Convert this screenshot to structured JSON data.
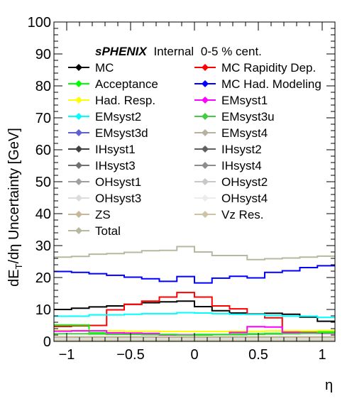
{
  "chart_data": {
    "type": "line",
    "style": "step-histogram",
    "xlabel": "η",
    "ylabel": "dE_T/dη Uncertainty  [GeV]",
    "xlim": [
      -1.1,
      1.1
    ],
    "ylim": [
      0,
      100
    ],
    "x_ticks": [
      "−1",
      "−0.5",
      "0",
      "0.5",
      "1"
    ],
    "x_tick_values": [
      -1,
      -0.5,
      0,
      0.5,
      1
    ],
    "y_ticks": [
      "0",
      "10",
      "20",
      "30",
      "40",
      "50",
      "60",
      "70",
      "80",
      "90",
      "100"
    ],
    "y_tick_values": [
      0,
      10,
      20,
      30,
      40,
      50,
      60,
      70,
      80,
      90,
      100
    ],
    "legend_header": {
      "experiment": "sPHENIX",
      "status": "Internal",
      "centrality": "0-5 % cent."
    },
    "legend_placement": "top",
    "bin_edges": [
      -1.1,
      -0.9625,
      -0.825,
      -0.6875,
      -0.55,
      -0.4125,
      -0.275,
      -0.1375,
      0,
      0.1375,
      0.275,
      0.4125,
      0.55,
      0.6875,
      0.825,
      0.9625,
      1.1
    ],
    "series": [
      {
        "name": "MC",
        "color": "#000000",
        "values": [
          10,
          10.4,
          10.8,
          11.1,
          11.6,
          12.1,
          12.4,
          12.6,
          10.9,
          9.6,
          8.9,
          8.6,
          8.8,
          8.5,
          7.6,
          6.3
        ]
      },
      {
        "name": "MC Rapidity Dep.",
        "color": "#ff0000",
        "values": [
          4.7,
          4.9,
          5.0,
          9.9,
          11.6,
          12.6,
          13.9,
          15.3,
          13.9,
          11.1,
          10.2,
          8.5,
          7.4,
          3.1,
          3.0,
          2.8
        ]
      },
      {
        "name": "Acceptance",
        "color": "#00ff00",
        "values": [
          5.1,
          5.1,
          2.7,
          2.6,
          2.5,
          2.3,
          2.2,
          2.1,
          2.2,
          2.2,
          2.3,
          2.4,
          2.5,
          2.7,
          2.8,
          3.0
        ]
      },
      {
        "name": "MC Had. Modeling",
        "color": "#0000ff",
        "values": [
          21.9,
          21.6,
          21.2,
          20.7,
          20.1,
          19.6,
          18.8,
          20.3,
          18.3,
          19.8,
          20.4,
          19.9,
          21.6,
          22.1,
          23.1,
          23.7
        ]
      },
      {
        "name": "Had. Resp.",
        "color": "#ffff00",
        "values": [
          3.4,
          3.4,
          3.3,
          3.3,
          3.2,
          3.2,
          3.1,
          3.1,
          3.1,
          3.1,
          3.2,
          3.2,
          3.3,
          3.3,
          3.3,
          3.4
        ]
      },
      {
        "name": "EMsyst1",
        "color": "#ff00ff",
        "values": [
          3.2,
          3.3,
          3.3,
          2.7,
          2.6,
          2.5,
          2.0,
          2.1,
          2.0,
          2.1,
          2.8,
          4.6,
          4.5,
          2.8,
          2.7,
          2.5
        ]
      },
      {
        "name": "EMsyst2",
        "color": "#00ffff",
        "values": [
          7.9,
          7.9,
          8.3,
          8.3,
          8.5,
          8.7,
          8.7,
          9.0,
          8.9,
          8.7,
          8.5,
          8.5,
          8.1,
          7.9,
          7.9,
          7.5
        ]
      },
      {
        "name": "EMsyst3u",
        "color": "#44cc44",
        "values": [
          2.4,
          2.4,
          2.3,
          2.2,
          2.2,
          2.1,
          2.1,
          2.0,
          2.0,
          2.1,
          2.1,
          2.2,
          2.3,
          2.4,
          2.5,
          2.6
        ]
      },
      {
        "name": "EMsyst3d",
        "color": "#6060d0",
        "values": [
          0.6,
          0.6,
          0.6,
          0.6,
          0.6,
          0.6,
          0.6,
          0.6,
          0.6,
          0.6,
          0.6,
          0.6,
          0.6,
          0.6,
          0.6,
          0.6
        ]
      },
      {
        "name": "EMsyst4",
        "color": "#b8b0a0",
        "values": [
          1.1,
          1.1,
          1.1,
          1.1,
          1.0,
          1.0,
          1.0,
          1.0,
          1.0,
          1.0,
          1.0,
          1.1,
          1.1,
          1.1,
          1.1,
          1.1
        ]
      },
      {
        "name": "IHsyst1",
        "color": "#404040",
        "values": [
          0.4,
          0.4,
          0.4,
          0.4,
          0.4,
          0.4,
          0.4,
          0.4,
          0.4,
          0.4,
          0.4,
          0.4,
          0.4,
          0.4,
          0.4,
          0.4
        ]
      },
      {
        "name": "IHsyst2",
        "color": "#606060",
        "values": [
          0.3,
          0.3,
          0.3,
          0.3,
          0.3,
          0.3,
          0.3,
          0.3,
          0.3,
          0.3,
          0.3,
          0.3,
          0.3,
          0.3,
          0.3,
          0.3
        ]
      },
      {
        "name": "IHsyst3",
        "color": "#707070",
        "values": [
          0.5,
          0.5,
          0.5,
          0.5,
          0.5,
          0.5,
          0.5,
          0.5,
          0.5,
          0.5,
          0.5,
          0.5,
          0.5,
          0.5,
          0.5,
          0.5
        ]
      },
      {
        "name": "IHsyst4",
        "color": "#8c8c8c",
        "values": [
          0.3,
          0.3,
          0.3,
          0.3,
          0.3,
          0.3,
          0.3,
          0.3,
          0.3,
          0.3,
          0.3,
          0.3,
          0.3,
          0.3,
          0.3,
          0.3
        ]
      },
      {
        "name": "OHsyst1",
        "color": "#a0a0a0",
        "values": [
          0.9,
          0.9,
          0.9,
          0.9,
          0.9,
          0.9,
          0.9,
          0.9,
          0.9,
          0.9,
          0.9,
          0.9,
          0.9,
          0.9,
          0.9,
          0.9
        ]
      },
      {
        "name": "OHsyst2",
        "color": "#c8c8c8",
        "values": [
          0.6,
          0.6,
          0.6,
          0.6,
          0.6,
          0.6,
          0.6,
          0.6,
          0.6,
          0.6,
          0.6,
          0.6,
          0.6,
          0.6,
          0.6,
          0.6
        ]
      },
      {
        "name": "OHsyst3",
        "color": "#dcdcdc",
        "values": [
          1.5,
          1.5,
          1.5,
          1.5,
          1.5,
          1.5,
          1.5,
          1.5,
          1.5,
          1.5,
          1.5,
          1.5,
          1.5,
          1.5,
          1.5,
          1.5
        ]
      },
      {
        "name": "OHsyst4",
        "color": "#ececec",
        "values": [
          0.8,
          0.8,
          0.8,
          0.8,
          0.8,
          0.8,
          0.8,
          0.8,
          0.8,
          0.8,
          0.8,
          0.8,
          0.8,
          0.8,
          0.8,
          0.8
        ]
      },
      {
        "name": "ZS",
        "color": "#c8b896",
        "values": [
          1.4,
          1.4,
          1.4,
          1.4,
          1.4,
          1.4,
          1.4,
          1.4,
          1.4,
          1.4,
          1.4,
          1.4,
          1.4,
          1.4,
          1.4,
          1.4
        ]
      },
      {
        "name": "Vz Res.",
        "color": "#cdc3a5",
        "values": [
          0.3,
          0.3,
          0.3,
          0.3,
          0.3,
          0.3,
          0.3,
          0.3,
          0.3,
          0.3,
          0.3,
          0.3,
          0.3,
          0.3,
          0.3,
          0.3
        ]
      },
      {
        "name": "Total",
        "color": "#b8b8a0",
        "values": [
          26.4,
          26.6,
          27.3,
          27.5,
          27.9,
          28.4,
          28.5,
          29.7,
          28.0,
          26.9,
          26.9,
          25.6,
          25.9,
          26.1,
          26.4,
          26.7
        ]
      }
    ]
  }
}
